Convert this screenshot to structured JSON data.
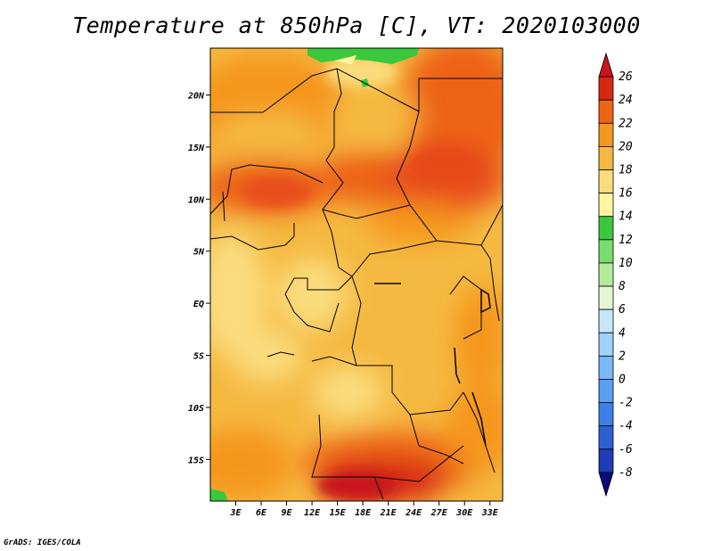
{
  "title": "Temperature at 850hPa [C], VT: 2020103000",
  "footer": "GrADS: IGES/COLA",
  "chart_data": {
    "type": "heatmap",
    "variable": "Temperature at 850hPa",
    "units": "C",
    "valid_time": "2020103000",
    "lon_range": [
      0,
      34.5
    ],
    "lat_range": [
      -19,
      24.5
    ],
    "x_ticks": [
      "3E",
      "6E",
      "9E",
      "12E",
      "15E",
      "18E",
      "21E",
      "24E",
      "27E",
      "30E",
      "33E"
    ],
    "y_ticks": [
      "20N",
      "15N",
      "10N",
      "5N",
      "EQ",
      "5S",
      "10S",
      "15S"
    ],
    "colorbar": {
      "levels": [
        "-8",
        "-6",
        "-4",
        "-2",
        "0",
        "2",
        "4",
        "6",
        "8",
        "10",
        "12",
        "14",
        "16",
        "18",
        "20",
        "22",
        "24",
        "26"
      ],
      "colors": [
        "#0a0a78",
        "#1e3cb4",
        "#2d5fd2",
        "#3c82e6",
        "#5aa0f0",
        "#7ab9f5",
        "#a0d2fa",
        "#c8e6fa",
        "#e6f5d2",
        "#b4eb9b",
        "#78dc6e",
        "#3cc83c",
        "#fff5a0",
        "#fadc7d",
        "#f5b941",
        "#f5961e",
        "#ed6414",
        "#d72814",
        "#c8141e"
      ]
    },
    "approx_regions": [
      {
        "region": "central basin / Congo",
        "value_range": "18-20"
      },
      {
        "region": "Sahel band ~10-15N",
        "value_range": "22-24"
      },
      {
        "region": "southern Angola / Zambia ~15-19S",
        "value_range": "24-26"
      },
      {
        "region": "northern Libya edge",
        "value_range": "12-14"
      }
    ]
  }
}
